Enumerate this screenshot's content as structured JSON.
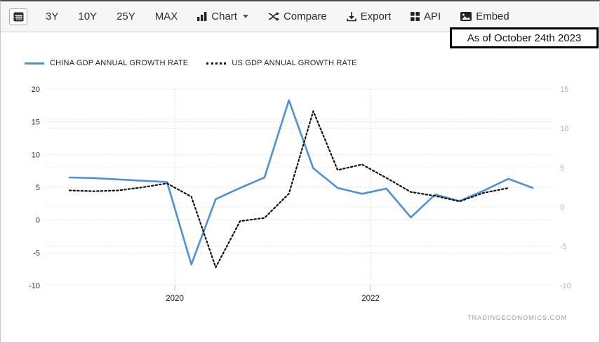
{
  "toolbar": {
    "ranges": [
      {
        "label": "3Y"
      },
      {
        "label": "10Y"
      },
      {
        "label": "25Y"
      },
      {
        "label": "MAX"
      }
    ],
    "chart_menu_label": "Chart",
    "compare_label": "Compare",
    "export_label": "Export",
    "api_label": "API",
    "embed_label": "Embed"
  },
  "annotation_text": "As of October 24th 2023",
  "watermark": "TRADINGECONOMICS.COM",
  "chart_data": {
    "type": "line",
    "title": "",
    "x": [
      "2018 Q4",
      "2019 Q1",
      "2019 Q2",
      "2019 Q3",
      "2019 Q4",
      "2020 Q1",
      "2020 Q2",
      "2020 Q3",
      "2020 Q4",
      "2021 Q1",
      "2021 Q2",
      "2021 Q3",
      "2021 Q4",
      "2022 Q1",
      "2022 Q2",
      "2022 Q3",
      "2022 Q4",
      "2023 Q1",
      "2023 Q2",
      "2023 Q3"
    ],
    "series": [
      {
        "name": "CHINA GDP ANNUAL GROWTH RATE",
        "axis": "left",
        "color": "#4e90dc",
        "style": "solid",
        "values": [
          6.5,
          6.4,
          6.2,
          6.0,
          5.8,
          -6.8,
          3.2,
          4.9,
          6.5,
          18.3,
          7.9,
          4.9,
          4.0,
          4.8,
          0.4,
          3.9,
          2.9,
          4.5,
          6.3,
          4.9
        ]
      },
      {
        "name": "US GDP ANNUAL GROWTH RATE",
        "axis": "right",
        "color": "#111111",
        "style": "dotted",
        "values": [
          2.1,
          2.0,
          2.1,
          2.5,
          3.0,
          1.3,
          -7.7,
          -1.8,
          -1.4,
          1.7,
          12.2,
          4.7,
          5.4,
          3.7,
          1.9,
          1.4,
          0.7,
          1.8,
          2.4,
          null
        ]
      }
    ],
    "left_axis": {
      "range": [
        -10,
        20
      ],
      "ticks": [
        20,
        15,
        10,
        5,
        0,
        -5,
        -10
      ]
    },
    "right_axis": {
      "range": [
        -10,
        15
      ],
      "ticks": [
        15,
        10,
        5,
        0,
        -5,
        -10
      ]
    },
    "x_ticks": [
      {
        "label": "2020",
        "quarter_index": 4.32
      },
      {
        "label": "2022",
        "quarter_index": 12.35
      }
    ],
    "grid": "dotted",
    "legend_position": "top-left"
  }
}
